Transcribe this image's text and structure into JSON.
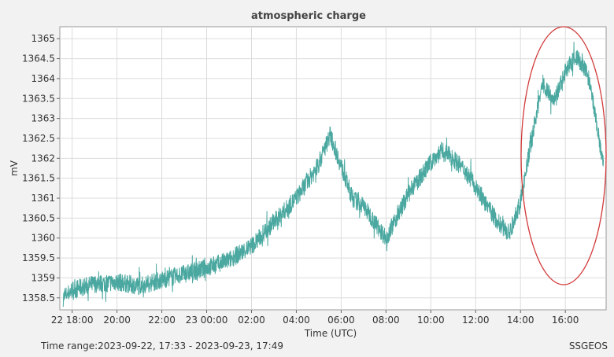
{
  "chart_data": {
    "type": "line",
    "title": "atmospheric charge",
    "xlabel": "Time (UTC)",
    "ylabel": "mV",
    "ylim": [
      1358.2,
      1365.3
    ],
    "x_ticks": [
      "22 18:00",
      "20:00",
      "22:00",
      "23 00:00",
      "02:00",
      "04:00",
      "06:00",
      "08:00",
      "10:00",
      "12:00",
      "14:00",
      "16:00"
    ],
    "y_ticks": [
      "1358.5",
      "1359",
      "1359.5",
      "1360",
      "1360.5",
      "1361",
      "1361.5",
      "1362",
      "1362.5",
      "1363",
      "1363.5",
      "1364",
      "1364.5",
      "1365"
    ],
    "grid": true,
    "series": [
      {
        "color": "#4aa8a0",
        "x_hours_since_1800": [
          -0.4,
          0.0,
          1.0,
          2.0,
          3.0,
          4.0,
          5.0,
          6.0,
          7.0,
          8.0,
          9.0,
          10.0,
          10.6,
          11.0,
          11.5,
          12.0,
          12.5,
          13.0,
          13.5,
          14.0,
          15.0,
          16.0,
          16.5,
          17.0,
          17.5,
          18.0,
          18.5,
          19.0,
          19.5,
          20.0,
          20.5,
          21.0,
          21.5,
          22.0,
          22.5,
          23.0,
          23.3,
          23.7
        ],
        "y": [
          1358.5,
          1358.7,
          1358.85,
          1358.9,
          1358.8,
          1358.95,
          1359.1,
          1359.25,
          1359.45,
          1359.8,
          1360.4,
          1361.0,
          1361.5,
          1361.85,
          1362.6,
          1361.8,
          1361.0,
          1360.8,
          1360.4,
          1360.0,
          1361.1,
          1361.9,
          1362.2,
          1362.0,
          1361.7,
          1361.3,
          1360.8,
          1360.4,
          1360.1,
          1360.9,
          1362.5,
          1363.9,
          1363.4,
          1364.2,
          1364.55,
          1364.1,
          1363.2,
          1361.8
        ]
      }
    ],
    "annotation": {
      "shape": "ellipse",
      "color": "#d23a3a"
    }
  },
  "footer": {
    "time_range_prefix": "Time range:",
    "time_range": "2023-09-22, 17:33 - 2023-09-23, 17:49",
    "source": "SSGEOS"
  }
}
